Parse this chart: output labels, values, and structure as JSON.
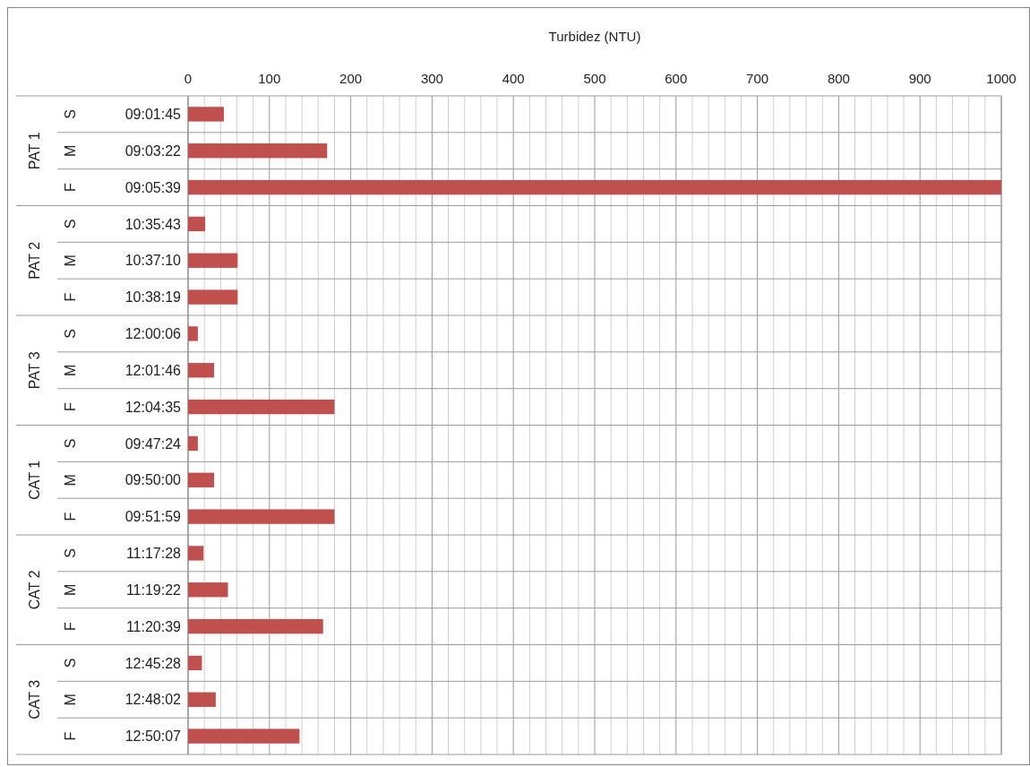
{
  "chart_data": {
    "type": "bar",
    "orientation": "horizontal",
    "xlabel": "Turbidez (NTU)",
    "categories": [
      "09:01:45",
      "09:03:22",
      "09:05:39",
      "10:35:43",
      "10:37:10",
      "10:38:19",
      "12:00:06",
      "12:01:46",
      "12:04:35",
      "09:47:24",
      "09:50:00",
      "09:51:59",
      "11:17:28",
      "11:19:22",
      "11:20:39",
      "12:45:28",
      "12:48:02",
      "12:50:07"
    ],
    "values": [
      44,
      171,
      1000,
      21,
      61,
      61,
      12,
      32,
      180,
      12,
      32,
      180,
      19,
      49,
      166,
      17,
      34,
      137
    ],
    "color": "#c0504d",
    "xlim": [
      0,
      1000
    ],
    "xticks": [
      0,
      {
        "value": 20,
        "label": null
      },
      {
        "value": 40,
        "label": null
      },
      {
        "value": 60,
        "label": null
      },
      {
        "value": 80,
        "label": null
      },
      100,
      {
        "value": 120,
        "label": null
      },
      {
        "value": 140,
        "label": null
      },
      {
        "value": 160,
        "label": null
      },
      {
        "value": 180,
        "label": null
      },
      200,
      {
        "value": 220,
        "label": null
      },
      {
        "value": 240,
        "label": null
      },
      {
        "value": 260,
        "label": null
      },
      {
        "value": 280,
        "label": null
      },
      300,
      {
        "value": 320,
        "label": null
      },
      {
        "value": 340,
        "label": null
      },
      {
        "value": 360,
        "label": null
      },
      {
        "value": 380,
        "label": null
      },
      400,
      {
        "value": 420,
        "label": null
      },
      {
        "value": 440,
        "label": null
      },
      {
        "value": 460,
        "label": null
      },
      {
        "value": 480,
        "label": null
      },
      500,
      {
        "value": 520,
        "label": null
      },
      {
        "value": 540,
        "label": null
      },
      {
        "value": 560,
        "label": null
      },
      {
        "value": 580,
        "label": null
      },
      600,
      {
        "value": 620,
        "label": null
      },
      {
        "value": 640,
        "label": null
      },
      {
        "value": 660,
        "label": null
      },
      {
        "value": 680,
        "label": null
      },
      700,
      {
        "value": 720,
        "label": null
      },
      {
        "value": 740,
        "label": null
      },
      {
        "value": 760,
        "label": null
      },
      {
        "value": 780,
        "label": null
      },
      800,
      {
        "value": 820,
        "label": null
      },
      {
        "value": 840,
        "label": null
      },
      {
        "value": 860,
        "label": null
      },
      {
        "value": 880,
        "label": null
      },
      900,
      {
        "value": 920,
        "label": null
      },
      {
        "value": 940,
        "label": null
      },
      {
        "value": 960,
        "label": null
      },
      {
        "value": 980,
        "label": null
      },
      1000
    ],
    "grid": "x",
    "annotations": [
      "PAT 1",
      "S",
      "M",
      "F",
      "PAT 2",
      "S",
      "M",
      "F",
      "PAT 3",
      "S",
      "M",
      "F",
      "CAT 1",
      "S",
      "M",
      "F",
      "CAT 2",
      "S",
      "M",
      "F",
      "CAT 3",
      "S",
      "M",
      "F"
    ]
  }
}
